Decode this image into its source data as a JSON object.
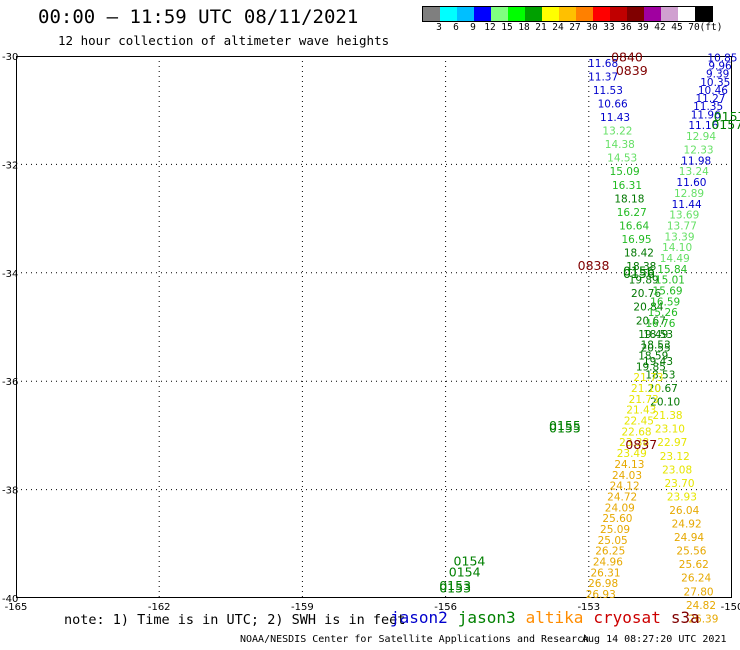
{
  "title": "00:00 – 11:59 UTC 08/11/2021",
  "subtitle": "12 hour collection of altimeter wave heights",
  "colorbar": {
    "colors": [
      "#7f7f7f",
      "#00ffff",
      "#00bfff",
      "#0000ff",
      "#80ff80",
      "#00ff00",
      "#00a000",
      "#ffff00",
      "#ffc000",
      "#ff8000",
      "#ff0000",
      "#c00000",
      "#800000",
      "#a000a0",
      "#d0a0d0",
      "#ffffff",
      "#000000"
    ],
    "labels": [
      "3",
      "6",
      "9",
      "12",
      "15",
      "18",
      "21",
      "24",
      "27",
      "30",
      "33",
      "36",
      "39",
      "42",
      "45",
      "70",
      "(ft)"
    ]
  },
  "note": "note: 1) Time is in UTC; 2) SWH is in feet",
  "legend": [
    {
      "label": "jason2",
      "color": "#0000cc"
    },
    {
      "label": "jason3",
      "color": "#008000"
    },
    {
      "label": "altika",
      "color": "#ff8c00"
    },
    {
      "label": "cryosat",
      "color": "#cc0000"
    },
    {
      "label": "s3a",
      "color": "#800000"
    }
  ],
  "footer_left": "NOAA/NESDIS Center for Satellite Applications and Research",
  "footer_right": "Aug 14 08:27:20 UTC 2021",
  "chart_data": {
    "type": "scatter",
    "xlabel": "",
    "ylabel": "",
    "xlim": [
      -165,
      -150
    ],
    "ylim": [
      -40,
      -30
    ],
    "x_ticks": [
      {
        "v": -165,
        "t": "-165"
      },
      {
        "v": -162,
        "t": "-162"
      },
      {
        "v": -159,
        "t": "-159"
      },
      {
        "v": -156,
        "t": "-156"
      },
      {
        "v": -153,
        "t": "-153"
      },
      {
        "v": -150,
        "t": "-150"
      }
    ],
    "y_ticks": [
      {
        "v": -30,
        "t": "-30"
      },
      {
        "v": -32,
        "t": "-32"
      },
      {
        "v": -34,
        "t": "-34"
      },
      {
        "v": -36,
        "t": "-36"
      },
      {
        "v": -38,
        "t": "-38"
      },
      {
        "v": -40,
        "t": "-40"
      }
    ],
    "grid": true,
    "time_labels": [
      {
        "t": "0840",
        "lon": -152.2,
        "lat": -30.1,
        "color": "#800000"
      },
      {
        "t": "0839",
        "lon": -152.1,
        "lat": -30.35,
        "color": "#800000"
      },
      {
        "t": "0838",
        "lon": -152.9,
        "lat": -33.95,
        "color": "#800000"
      },
      {
        "t": "0837",
        "lon": -151.9,
        "lat": -37.25,
        "color": "#800000"
      },
      {
        "t": "0156",
        "lon": -151.95,
        "lat": -34.05,
        "color": "#008000"
      },
      {
        "t": "0156",
        "lon": -151.95,
        "lat": -34.1,
        "color": "#008000"
      },
      {
        "t": "0155",
        "lon": -153.5,
        "lat": -36.9,
        "color": "#008000"
      },
      {
        "t": "0155",
        "lon": -153.5,
        "lat": -36.95,
        "color": "#008000"
      },
      {
        "t": "0154",
        "lon": -155.5,
        "lat": -39.4,
        "color": "#008000"
      },
      {
        "t": "0154",
        "lon": -155.6,
        "lat": -39.6,
        "color": "#008000"
      },
      {
        "t": "0153",
        "lon": -155.8,
        "lat": -39.85,
        "color": "#008000"
      },
      {
        "t": "0153",
        "lon": -155.8,
        "lat": -39.9,
        "color": "#008000"
      },
      {
        "t": "0157",
        "lon": -150.05,
        "lat": -31.2,
        "color": "#008000"
      },
      {
        "t": "0157",
        "lon": -150.1,
        "lat": -31.35,
        "color": "#008000"
      }
    ],
    "series": [
      {
        "name": "s3a",
        "points": [
          {
            "lon": -152.7,
            "lat": -30.2,
            "swh": 11.68
          },
          {
            "lon": -152.7,
            "lat": -30.45,
            "swh": 11.37
          },
          {
            "lon": -152.6,
            "lat": -30.7,
            "swh": 11.53
          },
          {
            "lon": -152.5,
            "lat": -30.95,
            "swh": 10.66
          },
          {
            "lon": -152.45,
            "lat": -31.2,
            "swh": 11.43
          },
          {
            "lon": -152.4,
            "lat": -31.45,
            "swh": 13.22
          },
          {
            "lon": -152.35,
            "lat": -31.7,
            "swh": 14.38
          },
          {
            "lon": -152.3,
            "lat": -31.95,
            "swh": 14.53
          },
          {
            "lon": -152.25,
            "lat": -32.2,
            "swh": 15.09
          },
          {
            "lon": -152.2,
            "lat": -32.45,
            "swh": 16.31
          },
          {
            "lon": -152.15,
            "lat": -32.7,
            "swh": 18.18
          },
          {
            "lon": -152.1,
            "lat": -32.95,
            "swh": 16.27
          },
          {
            "lon": -152.05,
            "lat": -33.2,
            "swh": 16.64
          },
          {
            "lon": -152.0,
            "lat": -33.45,
            "swh": 16.95
          },
          {
            "lon": -151.95,
            "lat": -33.7,
            "swh": 18.42
          },
          {
            "lon": -151.9,
            "lat": -33.95,
            "swh": 18.38
          },
          {
            "lon": -151.85,
            "lat": -34.2,
            "swh": 19.89
          },
          {
            "lon": -151.8,
            "lat": -34.45,
            "swh": 20.76
          },
          {
            "lon": -151.75,
            "lat": -34.7,
            "swh": 20.84
          },
          {
            "lon": -151.7,
            "lat": -34.95,
            "swh": 20.67
          },
          {
            "lon": -151.65,
            "lat": -35.2,
            "swh": 19.49
          },
          {
            "lon": -151.6,
            "lat": -35.45,
            "swh": 20.55
          },
          {
            "lon": -151.55,
            "lat": -35.7,
            "swh": 19.43
          },
          {
            "lon": -151.5,
            "lat": -35.95,
            "swh": 18.53
          },
          {
            "lon": -151.45,
            "lat": -36.2,
            "swh": 20.67
          },
          {
            "lon": -151.4,
            "lat": -36.45,
            "swh": 20.1
          },
          {
            "lon": -151.35,
            "lat": -36.7,
            "swh": 21.38
          },
          {
            "lon": -151.3,
            "lat": -36.95,
            "swh": 23.1
          },
          {
            "lon": -151.25,
            "lat": -37.2,
            "swh": 22.97
          },
          {
            "lon": -151.2,
            "lat": -37.45,
            "swh": 23.12
          },
          {
            "lon": -151.15,
            "lat": -37.7,
            "swh": 23.08
          },
          {
            "lon": -151.1,
            "lat": -37.95,
            "swh": 23.7
          },
          {
            "lon": -151.05,
            "lat": -38.2,
            "swh": 23.93
          },
          {
            "lon": -151.0,
            "lat": -38.45,
            "swh": 26.04
          },
          {
            "lon": -150.95,
            "lat": -38.7,
            "swh": 24.92
          },
          {
            "lon": -150.9,
            "lat": -38.95,
            "swh": 24.94
          },
          {
            "lon": -150.85,
            "lat": -39.2,
            "swh": 25.56
          },
          {
            "lon": -150.8,
            "lat": -39.45,
            "swh": 25.62
          },
          {
            "lon": -150.75,
            "lat": -39.7,
            "swh": 26.24
          },
          {
            "lon": -150.7,
            "lat": -39.95,
            "swh": 27.8
          },
          {
            "lon": -150.65,
            "lat": -40.2,
            "swh": 24.82
          },
          {
            "lon": -150.6,
            "lat": -40.45,
            "swh": 26.39
          }
        ]
      },
      {
        "name": "jason3",
        "points": [
          {
            "lon": -150.2,
            "lat": -30.1,
            "swh": 10.85
          },
          {
            "lon": -150.25,
            "lat": -30.25,
            "swh": 9.96
          },
          {
            "lon": -150.3,
            "lat": -30.4,
            "swh": 9.39
          },
          {
            "lon": -150.35,
            "lat": -30.55,
            "swh": 10.35
          },
          {
            "lon": -150.4,
            "lat": -30.7,
            "swh": 10.46
          },
          {
            "lon": -150.45,
            "lat": -30.85,
            "swh": 11.27
          },
          {
            "lon": -150.5,
            "lat": -31.0,
            "swh": 11.35
          },
          {
            "lon": -150.55,
            "lat": -31.15,
            "swh": 11.96
          },
          {
            "lon": -150.6,
            "lat": -31.35,
            "swh": 11.16
          },
          {
            "lon": -150.65,
            "lat": -31.55,
            "swh": 12.94
          },
          {
            "lon": -150.7,
            "lat": -31.8,
            "swh": 12.33
          },
          {
            "lon": -150.75,
            "lat": -32.0,
            "swh": 11.98
          },
          {
            "lon": -150.8,
            "lat": -32.2,
            "swh": 13.24
          },
          {
            "lon": -150.85,
            "lat": -32.4,
            "swh": 11.6
          },
          {
            "lon": -150.9,
            "lat": -32.6,
            "swh": 12.89
          },
          {
            "lon": -150.95,
            "lat": -32.8,
            "swh": 11.44
          },
          {
            "lon": -151.0,
            "lat": -33.0,
            "swh": 13.69
          },
          {
            "lon": -151.05,
            "lat": -33.2,
            "swh": 13.77
          },
          {
            "lon": -151.1,
            "lat": -33.4,
            "swh": 13.39
          },
          {
            "lon": -151.15,
            "lat": -33.6,
            "swh": 14.1
          },
          {
            "lon": -151.2,
            "lat": -33.8,
            "swh": 14.49
          },
          {
            "lon": -151.25,
            "lat": -34.0,
            "swh": 15.84
          },
          {
            "lon": -151.3,
            "lat": -34.2,
            "swh": 15.01
          },
          {
            "lon": -151.35,
            "lat": -34.4,
            "swh": 15.69
          },
          {
            "lon": -151.4,
            "lat": -34.6,
            "swh": 16.59
          },
          {
            "lon": -151.45,
            "lat": -34.8,
            "swh": 15.26
          },
          {
            "lon": -151.5,
            "lat": -35.0,
            "swh": 16.76
          },
          {
            "lon": -151.55,
            "lat": -35.2,
            "swh": 18.53
          },
          {
            "lon": -151.6,
            "lat": -35.4,
            "swh": 18.53
          },
          {
            "lon": -151.65,
            "lat": -35.6,
            "swh": 18.59
          },
          {
            "lon": -151.7,
            "lat": -35.8,
            "swh": 19.85
          },
          {
            "lon": -151.75,
            "lat": -36.0,
            "swh": 21.73
          },
          {
            "lon": -151.8,
            "lat": -36.2,
            "swh": 21.1
          },
          {
            "lon": -151.85,
            "lat": -36.4,
            "swh": 21.73
          },
          {
            "lon": -151.9,
            "lat": -36.6,
            "swh": 21.43
          },
          {
            "lon": -151.95,
            "lat": -36.8,
            "swh": 22.45
          },
          {
            "lon": -152.0,
            "lat": -37.0,
            "swh": 22.68
          },
          {
            "lon": -152.05,
            "lat": -37.2,
            "swh": 23.38
          },
          {
            "lon": -152.1,
            "lat": -37.4,
            "swh": 23.49
          },
          {
            "lon": -152.15,
            "lat": -37.6,
            "swh": 24.13
          },
          {
            "lon": -152.2,
            "lat": -37.8,
            "swh": 24.03
          },
          {
            "lon": -152.25,
            "lat": -38.0,
            "swh": 24.12
          },
          {
            "lon": -152.3,
            "lat": -38.2,
            "swh": 24.72
          },
          {
            "lon": -152.35,
            "lat": -38.4,
            "swh": 24.09
          },
          {
            "lon": -152.4,
            "lat": -38.6,
            "swh": 25.6
          },
          {
            "lon": -152.45,
            "lat": -38.8,
            "swh": 25.09
          },
          {
            "lon": -152.5,
            "lat": -39.0,
            "swh": 25.05
          },
          {
            "lon": -152.55,
            "lat": -39.2,
            "swh": 26.25
          },
          {
            "lon": -152.6,
            "lat": -39.4,
            "swh": 24.96
          },
          {
            "lon": -152.65,
            "lat": -39.6,
            "swh": 26.31
          },
          {
            "lon": -152.7,
            "lat": -39.8,
            "swh": 26.98
          },
          {
            "lon": -152.75,
            "lat": -40.0,
            "swh": 26.93
          }
        ]
      }
    ]
  }
}
